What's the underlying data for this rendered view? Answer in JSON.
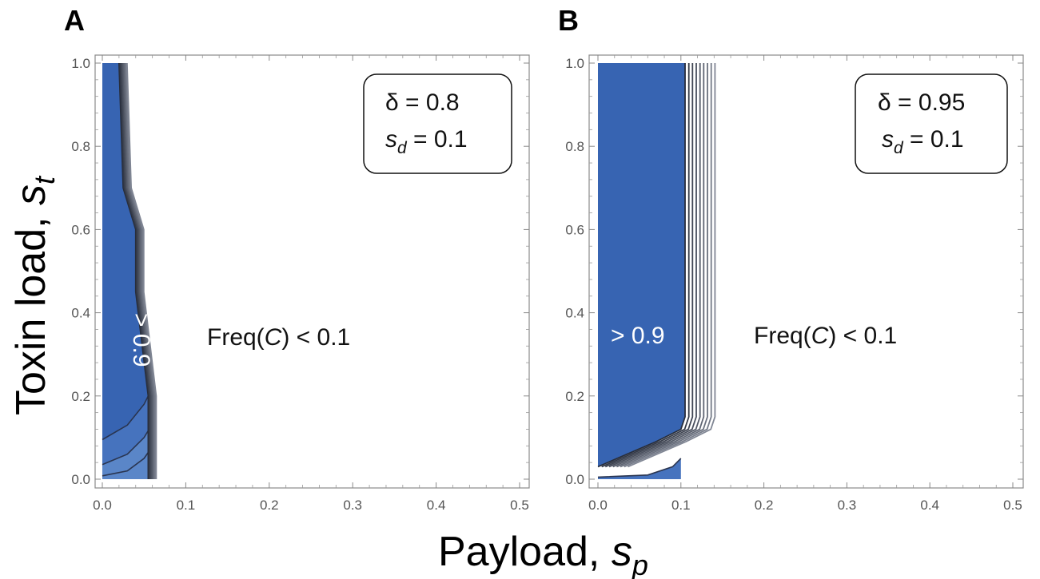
{
  "figure": {
    "xlabel_main": "Payload, ",
    "xlabel_var": "s",
    "xlabel_sub": "p",
    "ylabel_main": "Toxin load, ",
    "ylabel_var": "s",
    "ylabel_sub": "t"
  },
  "chart_data": [
    {
      "panel": "A",
      "type": "contour",
      "delta_label": "δ = 0.8",
      "sd_var": "s",
      "sd_sub": "d",
      "sd_value": " = 0.1",
      "label_high": "> 0.9",
      "label_low_prefix": "Freq(",
      "label_low_var": "C",
      "label_low_suffix": ") < 0.1",
      "xlim": [
        0,
        0.5
      ],
      "ylim": [
        0,
        1
      ],
      "x_ticks": [
        "0.0",
        "0.1",
        "0.2",
        "0.3",
        "0.4",
        "0.5"
      ],
      "y_ticks": [
        "0.0",
        "0.2",
        "0.4",
        "0.6",
        "0.8",
        "1.0"
      ],
      "high_region_boundary": [
        [
          0.02,
          1.0
        ],
        [
          0.025,
          0.7
        ],
        [
          0.04,
          0.6
        ],
        [
          0.04,
          0.45
        ],
        [
          0.055,
          0.2
        ],
        [
          0.055,
          0.0
        ]
      ],
      "contour_step_x": 0.0012,
      "contour_count": 9,
      "bottom_bands": [
        {
          "level": 0.85,
          "pts": [
            [
              0,
              0.095
            ],
            [
              0.03,
              0.13
            ],
            [
              0.05,
              0.18
            ],
            [
              0.055,
              0.2
            ]
          ]
        },
        {
          "level": 0.75,
          "pts": [
            [
              0,
              0.035
            ],
            [
              0.03,
              0.06
            ],
            [
              0.05,
              0.1
            ],
            [
              0.056,
              0.12
            ]
          ]
        },
        {
          "level": 0.6,
          "pts": [
            [
              0,
              0.008
            ],
            [
              0.03,
              0.02
            ],
            [
              0.05,
              0.05
            ],
            [
              0.057,
              0.07
            ]
          ]
        }
      ]
    },
    {
      "panel": "B",
      "type": "contour",
      "delta_label": "δ = 0.95",
      "sd_var": "s",
      "sd_sub": "d",
      "sd_value": " = 0.1",
      "label_high": "> 0.9",
      "label_low_prefix": "Freq(",
      "label_low_var": "C",
      "label_low_suffix": ") < 0.1",
      "xlim": [
        0,
        0.5
      ],
      "ylim": [
        0,
        1
      ],
      "x_ticks": [
        "0.0",
        "0.1",
        "0.2",
        "0.3",
        "0.4",
        "0.5"
      ],
      "y_ticks": [
        "0.0",
        "0.2",
        "0.4",
        "0.6",
        "0.8",
        "1.0"
      ],
      "high_region_boundary": [
        [
          0.105,
          1.0
        ],
        [
          0.105,
          0.15
        ],
        [
          0.1,
          0.12
        ],
        [
          0.07,
          0.09
        ],
        [
          0.0,
          0.03
        ]
      ],
      "contour_step_x": 0.0045,
      "contour_count": 9,
      "bottom_bands": [
        {
          "level": 0.8,
          "pts": [
            [
              0,
              0.005
            ],
            [
              0.06,
              0.01
            ],
            [
              0.09,
              0.03
            ],
            [
              0.1,
              0.05
            ]
          ]
        }
      ]
    }
  ]
}
